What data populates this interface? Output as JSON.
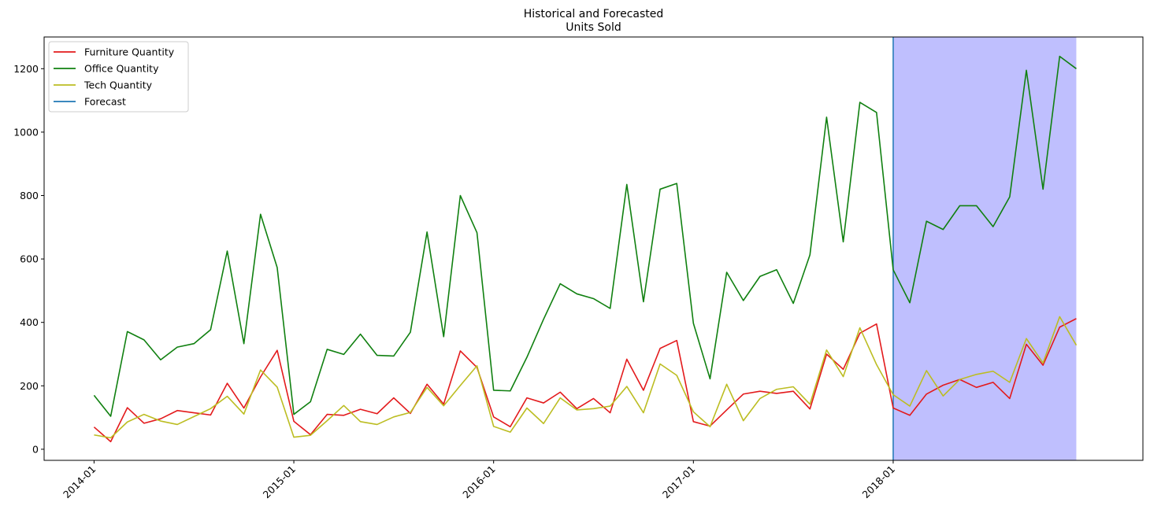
{
  "chart_data": {
    "type": "line",
    "title": "Historical and Forecasted",
    "subtitle": "Units Sold",
    "xlabel": "",
    "ylabel": "",
    "x_ticks": [
      "2014-01",
      "2015-01",
      "2016-01",
      "2017-01",
      "2018-01"
    ],
    "y_ticks": [
      0,
      200,
      400,
      600,
      800,
      1000,
      1200
    ],
    "xlim": [
      "2013-10",
      "2019-04"
    ],
    "ylim": [
      -35,
      1300
    ],
    "grid": false,
    "legend_position": "top-left",
    "forecast_start": "2018-01",
    "forecast_end": "2018-12",
    "forecast_region_color": "#bfbffe",
    "forecast_line_color": "#1f77b4",
    "x": [
      "2014-01",
      "2014-02",
      "2014-03",
      "2014-04",
      "2014-05",
      "2014-06",
      "2014-07",
      "2014-08",
      "2014-09",
      "2014-10",
      "2014-11",
      "2014-12",
      "2015-01",
      "2015-02",
      "2015-03",
      "2015-04",
      "2015-05",
      "2015-06",
      "2015-07",
      "2015-08",
      "2015-09",
      "2015-10",
      "2015-11",
      "2015-12",
      "2016-01",
      "2016-02",
      "2016-03",
      "2016-04",
      "2016-05",
      "2016-06",
      "2016-07",
      "2016-08",
      "2016-09",
      "2016-10",
      "2016-11",
      "2016-12",
      "2017-01",
      "2017-02",
      "2017-03",
      "2017-04",
      "2017-05",
      "2017-06",
      "2017-07",
      "2017-08",
      "2017-09",
      "2017-10",
      "2017-11",
      "2017-12",
      "2018-01",
      "2018-02",
      "2018-03",
      "2018-04",
      "2018-05",
      "2018-06",
      "2018-07",
      "2018-08",
      "2018-09",
      "2018-10",
      "2018-11",
      "2018-12"
    ],
    "series": [
      {
        "name": "Furniture Quantity",
        "color": "#e31a1c",
        "values": [
          70,
          24,
          131,
          82,
          96,
          122,
          115,
          108,
          208,
          130,
          228,
          312,
          88,
          46,
          110,
          107,
          126,
          112,
          162,
          113,
          205,
          142,
          310,
          258,
          102,
          71,
          162,
          146,
          180,
          128,
          160,
          115,
          284,
          186,
          318,
          343,
          87,
          73,
          124,
          174,
          183,
          176,
          183,
          127,
          300,
          252,
          366,
          395,
          130,
          107,
          174,
          202,
          220,
          195,
          211,
          160,
          331,
          265,
          385,
          412
        ]
      },
      {
        "name": "Office Quantity",
        "color": "#108010",
        "values": [
          170,
          104,
          371,
          345,
          282,
          322,
          333,
          377,
          625,
          333,
          741,
          573,
          110,
          150,
          315,
          299,
          363,
          296,
          294,
          369,
          685,
          355,
          800,
          683,
          186,
          184,
          290,
          410,
          522,
          490,
          475,
          444,
          835,
          465,
          820,
          838,
          397,
          222,
          558,
          469,
          545,
          566,
          460,
          613,
          1047,
          654,
          1094,
          1062,
          566,
          462,
          719,
          693,
          768,
          768,
          702,
          796,
          1195,
          820,
          1239,
          1200
        ]
      },
      {
        "name": "Tech Quantity",
        "color": "#bcbd22",
        "values": [
          45,
          36,
          86,
          110,
          89,
          78,
          103,
          128,
          167,
          111,
          250,
          196,
          38,
          44,
          90,
          138,
          87,
          78,
          102,
          116,
          195,
          137,
          201,
          263,
          72,
          54,
          130,
          81,
          162,
          124,
          128,
          136,
          198,
          115,
          269,
          233,
          118,
          71,
          205,
          90,
          160,
          189,
          197,
          142,
          313,
          229,
          383,
          267,
          172,
          136,
          248,
          168,
          220,
          236,
          246,
          211,
          349,
          272,
          418,
          328
        ]
      }
    ],
    "legend": [
      {
        "label": "Furniture Quantity",
        "color": "#e31a1c"
      },
      {
        "label": "Office Quantity",
        "color": "#108010"
      },
      {
        "label": "Tech Quantity",
        "color": "#bcbd22"
      },
      {
        "label": "Forecast",
        "color": "#1f77b4"
      }
    ]
  }
}
